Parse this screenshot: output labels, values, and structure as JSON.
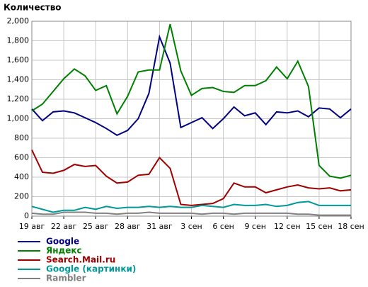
{
  "chart_data": {
    "type": "line",
    "title": "Количество",
    "categories": [
      "19 авг",
      null,
      null,
      "22 авг",
      null,
      null,
      "25 авг",
      null,
      null,
      "28 авг",
      null,
      null,
      "31 авг",
      null,
      null,
      "3 сен",
      null,
      null,
      "6 сен",
      null,
      null,
      "9 сен",
      null,
      null,
      "12 сен",
      null,
      null,
      "15 сен",
      null,
      null,
      "18 сен"
    ],
    "ylim": [
      0,
      2000
    ],
    "yticks": [
      0,
      200,
      400,
      600,
      800,
      {
        "value": 1000,
        "label": "1,000"
      },
      {
        "value": 1200,
        "label": "1,200"
      },
      {
        "value": 1400,
        "label": "1,400"
      },
      {
        "value": 1600,
        "label": "1,600"
      },
      {
        "value": 1800,
        "label": "1,800"
      },
      {
        "value": 2000,
        "label": "2,000"
      }
    ],
    "grid": true,
    "series": [
      {
        "name": "Google",
        "color": "#000080",
        "values": [
          1100,
          980,
          1070,
          1080,
          1060,
          1010,
          960,
          900,
          830,
          880,
          1000,
          1260,
          1840,
          1570,
          910,
          960,
          1010,
          900,
          1000,
          1120,
          1030,
          1060,
          940,
          1070,
          1060,
          1080,
          1020,
          1110,
          1100,
          1010,
          1100
        ]
      },
      {
        "name": "Яндекс",
        "color": "#008000",
        "values": [
          1080,
          1150,
          1280,
          1410,
          1510,
          1440,
          1290,
          1340,
          1050,
          1230,
          1480,
          1500,
          1500,
          1970,
          1490,
          1240,
          1310,
          1320,
          1280,
          1270,
          1340,
          1340,
          1390,
          1530,
          1410,
          1590,
          1330,
          520,
          410,
          390,
          420
        ]
      },
      {
        "name": "Search.Mail.ru",
        "color": "#a00000",
        "values": [
          680,
          450,
          440,
          470,
          530,
          510,
          520,
          410,
          340,
          350,
          420,
          430,
          600,
          490,
          120,
          110,
          120,
          130,
          180,
          340,
          300,
          300,
          240,
          270,
          300,
          320,
          290,
          280,
          290,
          260,
          270
        ]
      },
      {
        "name": "Google (картинки)",
        "color": "#009999",
        "values": [
          100,
          70,
          40,
          60,
          60,
          90,
          70,
          100,
          80,
          90,
          90,
          100,
          90,
          100,
          90,
          90,
          110,
          100,
          90,
          120,
          110,
          110,
          120,
          100,
          110,
          140,
          150,
          110,
          110,
          110,
          110
        ]
      },
      {
        "name": "Rambler",
        "color": "#808080",
        "values": [
          30,
          20,
          20,
          40,
          40,
          40,
          30,
          30,
          20,
          30,
          30,
          40,
          30,
          30,
          30,
          30,
          20,
          30,
          30,
          20,
          30,
          30,
          30,
          30,
          30,
          20,
          20,
          10,
          10,
          10,
          10
        ]
      }
    ]
  }
}
